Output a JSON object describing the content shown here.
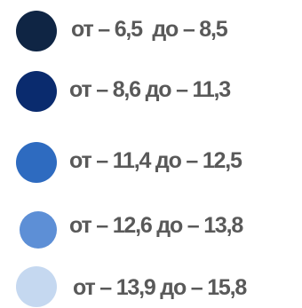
{
  "legend": {
    "items": [
      {
        "label": "от – 6,5  до – 8,5",
        "color": "#0f2544"
      },
      {
        "label": "от – 8,6 до – 11,3",
        "color": "#0a2b6e"
      },
      {
        "label": "от – 11,4 до – 12,5",
        "color": "#2e6bc0"
      },
      {
        "label": "от – 12,6 до – 13,8",
        "color": "#5d8fd6"
      },
      {
        "label": "от – 13,9 до – 15,8",
        "color": "#c5d8f0"
      }
    ]
  }
}
